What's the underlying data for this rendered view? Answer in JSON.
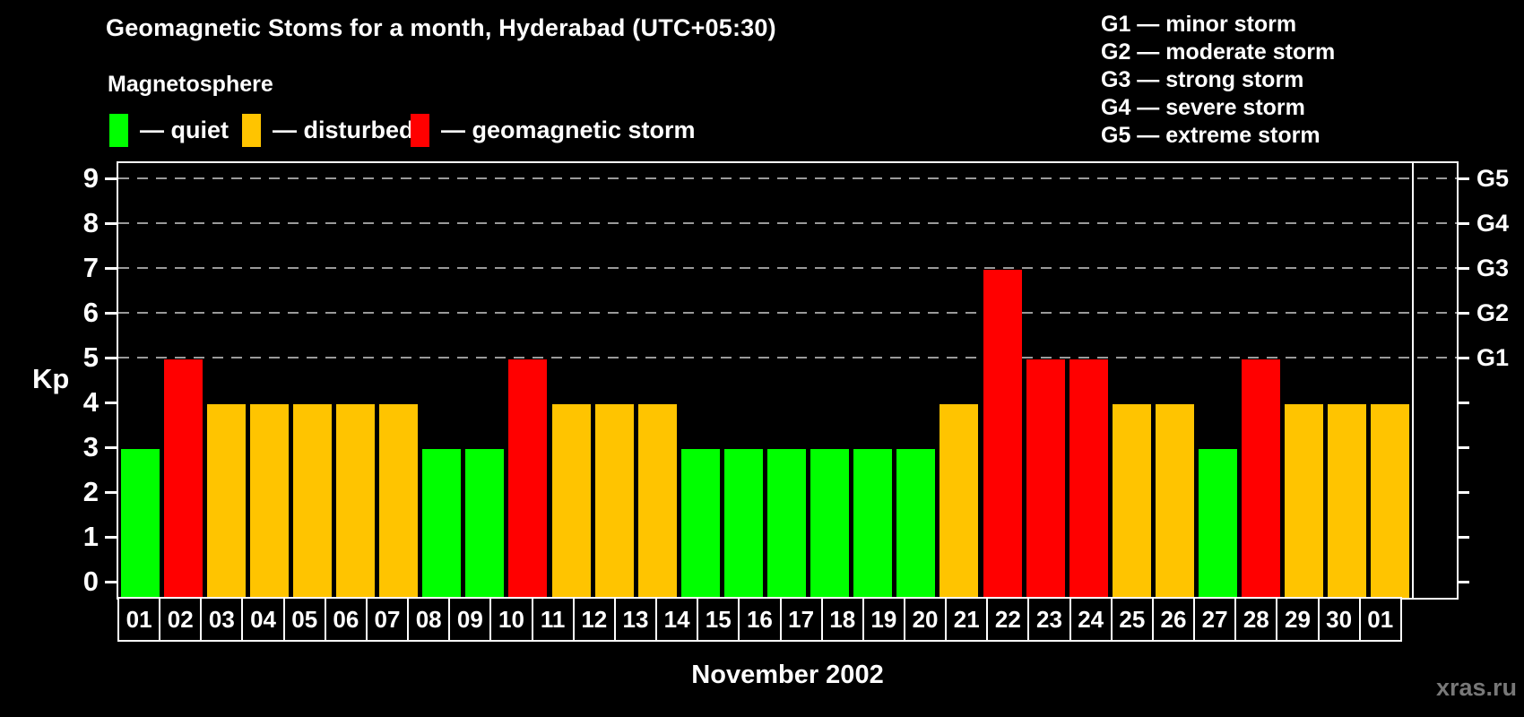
{
  "title": "Geomagnetic Stoms for a month, Hyderabad (UTC+05:30)",
  "legend": {
    "heading": "Magnetosphere",
    "items": [
      {
        "name": "quiet",
        "label": "— quiet",
        "color": "#00ff00"
      },
      {
        "name": "disturbed",
        "label": "— disturbed",
        "color": "#ffc400"
      },
      {
        "name": "storm",
        "label": "— geomagnetic storm",
        "color": "#ff0000"
      }
    ]
  },
  "g_legend": [
    "G1 — minor storm",
    "G2 — moderate storm",
    "G3 — strong storm",
    "G4 — severe storm",
    "G5 — extreme storm"
  ],
  "watermark": "xras.ru",
  "chart_data": {
    "type": "bar",
    "title": "Geomagnetic Stoms for a month, Hyderabad (UTC+05:30)",
    "xlabel": "November 2002",
    "ylabel": "Kp",
    "ylim": [
      0,
      9
    ],
    "yticks": [
      0,
      1,
      2,
      3,
      4,
      5,
      6,
      7,
      8,
      9
    ],
    "gridlines_at": [
      5,
      6,
      7,
      8,
      9
    ],
    "grid": "dashed, horizontal, Kp 5-9 only",
    "legend_position": "top",
    "right_axis_labels": [
      {
        "label": "G1",
        "kp": 5
      },
      {
        "label": "G2",
        "kp": 6
      },
      {
        "label": "G3",
        "kp": 7
      },
      {
        "label": "G4",
        "kp": 8
      },
      {
        "label": "G5",
        "kp": 9
      }
    ],
    "categories": [
      "01",
      "02",
      "03",
      "04",
      "05",
      "06",
      "07",
      "08",
      "09",
      "10",
      "11",
      "12",
      "13",
      "14",
      "15",
      "16",
      "17",
      "18",
      "19",
      "20",
      "21",
      "22",
      "23",
      "24",
      "25",
      "26",
      "27",
      "28",
      "29",
      "30",
      "01"
    ],
    "values": [
      3,
      5,
      4,
      4,
      4,
      4,
      4,
      3,
      3,
      5,
      4,
      4,
      4,
      3,
      3,
      3,
      3,
      3,
      3,
      4,
      7,
      5,
      5,
      4,
      4,
      3,
      5,
      4,
      4,
      4,
      null
    ],
    "statuses": [
      "quiet",
      "storm",
      "disturbed",
      "disturbed",
      "disturbed",
      "disturbed",
      "disturbed",
      "quiet",
      "quiet",
      "storm",
      "disturbed",
      "disturbed",
      "disturbed",
      "quiet",
      "quiet",
      "quiet",
      "quiet",
      "quiet",
      "quiet",
      "disturbed",
      "storm",
      "storm",
      "storm",
      "disturbed",
      "disturbed",
      "quiet",
      "storm",
      "disturbed",
      "disturbed",
      "disturbed",
      null
    ],
    "colors_by_status": {
      "quiet": "#00ff00",
      "disturbed": "#ffc400",
      "storm": "#ff0000"
    }
  }
}
